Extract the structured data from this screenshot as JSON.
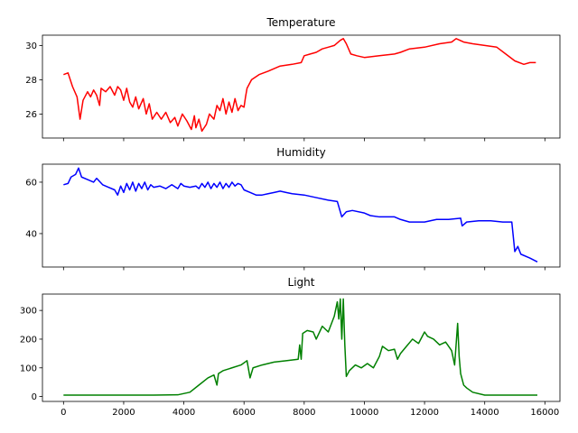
{
  "chart_data": [
    {
      "type": "line",
      "title": "Temperature",
      "color": "#ff0000",
      "xlim": [
        -700,
        16500
      ],
      "ylim": [
        24.6,
        30.6
      ],
      "yticks": [
        26,
        28,
        30
      ],
      "xticks": [
        0,
        2000,
        4000,
        6000,
        8000,
        10000,
        12000,
        14000,
        16000
      ],
      "show_xtick_labels": false,
      "points": [
        [
          0,
          28.3
        ],
        [
          150,
          28.4
        ],
        [
          300,
          27.6
        ],
        [
          450,
          27.0
        ],
        [
          550,
          25.7
        ],
        [
          650,
          26.8
        ],
        [
          800,
          27.3
        ],
        [
          900,
          27.0
        ],
        [
          1000,
          27.4
        ],
        [
          1100,
          27.1
        ],
        [
          1200,
          26.5
        ],
        [
          1250,
          27.5
        ],
        [
          1400,
          27.3
        ],
        [
          1550,
          27.6
        ],
        [
          1700,
          27.1
        ],
        [
          1800,
          27.6
        ],
        [
          1900,
          27.4
        ],
        [
          2000,
          26.8
        ],
        [
          2100,
          27.5
        ],
        [
          2200,
          26.7
        ],
        [
          2300,
          26.4
        ],
        [
          2400,
          27.0
        ],
        [
          2500,
          26.3
        ],
        [
          2650,
          26.9
        ],
        [
          2750,
          26.0
        ],
        [
          2850,
          26.6
        ],
        [
          2950,
          25.7
        ],
        [
          3100,
          26.1
        ],
        [
          3250,
          25.7
        ],
        [
          3400,
          26.1
        ],
        [
          3550,
          25.5
        ],
        [
          3700,
          25.8
        ],
        [
          3800,
          25.3
        ],
        [
          3950,
          26.0
        ],
        [
          4100,
          25.6
        ],
        [
          4250,
          25.1
        ],
        [
          4350,
          25.9
        ],
        [
          4400,
          25.2
        ],
        [
          4500,
          25.7
        ],
        [
          4600,
          25.0
        ],
        [
          4750,
          25.4
        ],
        [
          4850,
          26.0
        ],
        [
          5000,
          25.7
        ],
        [
          5100,
          26.5
        ],
        [
          5200,
          26.2
        ],
        [
          5300,
          26.9
        ],
        [
          5400,
          26.0
        ],
        [
          5500,
          26.7
        ],
        [
          5600,
          26.1
        ],
        [
          5700,
          26.9
        ],
        [
          5800,
          26.2
        ],
        [
          5900,
          26.5
        ],
        [
          6000,
          26.4
        ],
        [
          6050,
          27.0
        ],
        [
          6100,
          27.5
        ],
        [
          6250,
          28.0
        ],
        [
          6500,
          28.3
        ],
        [
          6800,
          28.5
        ],
        [
          7200,
          28.8
        ],
        [
          7600,
          28.9
        ],
        [
          7900,
          29.0
        ],
        [
          8000,
          29.4
        ],
        [
          8200,
          29.5
        ],
        [
          8400,
          29.6
        ],
        [
          8600,
          29.8
        ],
        [
          8800,
          29.9
        ],
        [
          9000,
          30.0
        ],
        [
          9200,
          30.3
        ],
        [
          9300,
          30.4
        ],
        [
          9400,
          30.1
        ],
        [
          9550,
          29.5
        ],
        [
          9750,
          29.4
        ],
        [
          10000,
          29.3
        ],
        [
          10500,
          29.4
        ],
        [
          11000,
          29.5
        ],
        [
          11200,
          29.6
        ],
        [
          11500,
          29.8
        ],
        [
          12000,
          29.9
        ],
        [
          12500,
          30.1
        ],
        [
          12900,
          30.2
        ],
        [
          13050,
          30.4
        ],
        [
          13300,
          30.2
        ],
        [
          13600,
          30.1
        ],
        [
          14000,
          30.0
        ],
        [
          14400,
          29.9
        ],
        [
          14700,
          29.5
        ],
        [
          15000,
          29.1
        ],
        [
          15300,
          28.9
        ],
        [
          15500,
          29.0
        ],
        [
          15700,
          29.0
        ]
      ]
    },
    {
      "type": "line",
      "title": "Humidity",
      "color": "#0000ff",
      "xlim": [
        -700,
        16500
      ],
      "ylim": [
        27,
        67
      ],
      "yticks": [
        40,
        60
      ],
      "xticks": [
        0,
        2000,
        4000,
        6000,
        8000,
        10000,
        12000,
        14000,
        16000
      ],
      "show_xtick_labels": false,
      "points": [
        [
          0,
          59.0
        ],
        [
          150,
          59.5
        ],
        [
          250,
          62.0
        ],
        [
          400,
          63.0
        ],
        [
          500,
          65.5
        ],
        [
          600,
          62.0
        ],
        [
          800,
          61.0
        ],
        [
          1000,
          60.0
        ],
        [
          1100,
          61.5
        ],
        [
          1300,
          59.0
        ],
        [
          1500,
          58.0
        ],
        [
          1700,
          57.0
        ],
        [
          1800,
          55.0
        ],
        [
          1900,
          58.5
        ],
        [
          2000,
          56.0
        ],
        [
          2100,
          59.5
        ],
        [
          2200,
          57.0
        ],
        [
          2300,
          60.0
        ],
        [
          2400,
          56.5
        ],
        [
          2500,
          59.5
        ],
        [
          2600,
          57.5
        ],
        [
          2700,
          60.0
        ],
        [
          2800,
          57.0
        ],
        [
          2900,
          59.0
        ],
        [
          3000,
          58.0
        ],
        [
          3200,
          58.5
        ],
        [
          3400,
          57.5
        ],
        [
          3600,
          59.0
        ],
        [
          3800,
          57.5
        ],
        [
          3900,
          59.5
        ],
        [
          4000,
          58.5
        ],
        [
          4200,
          58.0
        ],
        [
          4400,
          58.5
        ],
        [
          4500,
          57.5
        ],
        [
          4600,
          59.5
        ],
        [
          4700,
          58.0
        ],
        [
          4800,
          60.0
        ],
        [
          4900,
          57.5
        ],
        [
          5000,
          59.5
        ],
        [
          5100,
          58.0
        ],
        [
          5200,
          60.0
        ],
        [
          5300,
          57.5
        ],
        [
          5400,
          59.5
        ],
        [
          5500,
          58.0
        ],
        [
          5600,
          60.0
        ],
        [
          5700,
          58.5
        ],
        [
          5800,
          59.5
        ],
        [
          5900,
          59.0
        ],
        [
          6000,
          57.0
        ],
        [
          6200,
          56.0
        ],
        [
          6400,
          55.0
        ],
        [
          6600,
          55.0
        ],
        [
          6800,
          55.5
        ],
        [
          7000,
          56.0
        ],
        [
          7200,
          56.5
        ],
        [
          7400,
          56.0
        ],
        [
          7600,
          55.5
        ],
        [
          8000,
          55.0
        ],
        [
          8400,
          54.0
        ],
        [
          8800,
          53.0
        ],
        [
          9100,
          52.5
        ],
        [
          9200,
          48.5
        ],
        [
          9250,
          46.5
        ],
        [
          9400,
          48.5
        ],
        [
          9600,
          49.0
        ],
        [
          10000,
          48.0
        ],
        [
          10200,
          47.0
        ],
        [
          10500,
          46.5
        ],
        [
          11000,
          46.5
        ],
        [
          11200,
          45.5
        ],
        [
          11500,
          44.5
        ],
        [
          12000,
          44.5
        ],
        [
          12400,
          45.5
        ],
        [
          12800,
          45.5
        ],
        [
          13200,
          46.0
        ],
        [
          13250,
          43.0
        ],
        [
          13400,
          44.5
        ],
        [
          13800,
          45.0
        ],
        [
          14200,
          45.0
        ],
        [
          14600,
          44.5
        ],
        [
          14900,
          44.5
        ],
        [
          15000,
          33.0
        ],
        [
          15100,
          35.0
        ],
        [
          15200,
          32.0
        ],
        [
          15500,
          30.5
        ],
        [
          15750,
          29.0
        ]
      ]
    },
    {
      "type": "line",
      "title": "Light",
      "color": "#008000",
      "xlim": [
        -700,
        16500
      ],
      "ylim": [
        -17,
        357
      ],
      "yticks": [
        0,
        100,
        200,
        300
      ],
      "xticks": [
        0,
        2000,
        4000,
        6000,
        8000,
        10000,
        12000,
        14000,
        16000
      ],
      "show_xtick_labels": true,
      "points": [
        [
          0,
          5
        ],
        [
          1000,
          5
        ],
        [
          2000,
          5
        ],
        [
          3000,
          5
        ],
        [
          3800,
          6
        ],
        [
          4200,
          15
        ],
        [
          4500,
          40
        ],
        [
          4800,
          65
        ],
        [
          5000,
          75
        ],
        [
          5100,
          40
        ],
        [
          5150,
          80
        ],
        [
          5300,
          90
        ],
        [
          5600,
          100
        ],
        [
          5900,
          110
        ],
        [
          6100,
          125
        ],
        [
          6200,
          65
        ],
        [
          6300,
          100
        ],
        [
          6600,
          110
        ],
        [
          7000,
          120
        ],
        [
          7400,
          125
        ],
        [
          7800,
          130
        ],
        [
          7850,
          180
        ],
        [
          7900,
          130
        ],
        [
          7950,
          220
        ],
        [
          8100,
          230
        ],
        [
          8300,
          225
        ],
        [
          8400,
          200
        ],
        [
          8600,
          245
        ],
        [
          8800,
          225
        ],
        [
          9000,
          280
        ],
        [
          9100,
          330
        ],
        [
          9150,
          270
        ],
        [
          9200,
          340
        ],
        [
          9250,
          200
        ],
        [
          9300,
          340
        ],
        [
          9350,
          180
        ],
        [
          9400,
          70
        ],
        [
          9500,
          90
        ],
        [
          9700,
          110
        ],
        [
          9900,
          100
        ],
        [
          10100,
          115
        ],
        [
          10300,
          100
        ],
        [
          10500,
          140
        ],
        [
          10600,
          175
        ],
        [
          10800,
          160
        ],
        [
          11000,
          165
        ],
        [
          11100,
          130
        ],
        [
          11200,
          150
        ],
        [
          11400,
          175
        ],
        [
          11600,
          200
        ],
        [
          11800,
          185
        ],
        [
          12000,
          225
        ],
        [
          12100,
          210
        ],
        [
          12300,
          200
        ],
        [
          12500,
          180
        ],
        [
          12700,
          190
        ],
        [
          12900,
          160
        ],
        [
          13000,
          110
        ],
        [
          13100,
          255
        ],
        [
          13150,
          140
        ],
        [
          13200,
          80
        ],
        [
          13300,
          40
        ],
        [
          13400,
          30
        ],
        [
          13600,
          15
        ],
        [
          14000,
          5
        ],
        [
          15000,
          5
        ],
        [
          15750,
          5
        ]
      ]
    }
  ]
}
